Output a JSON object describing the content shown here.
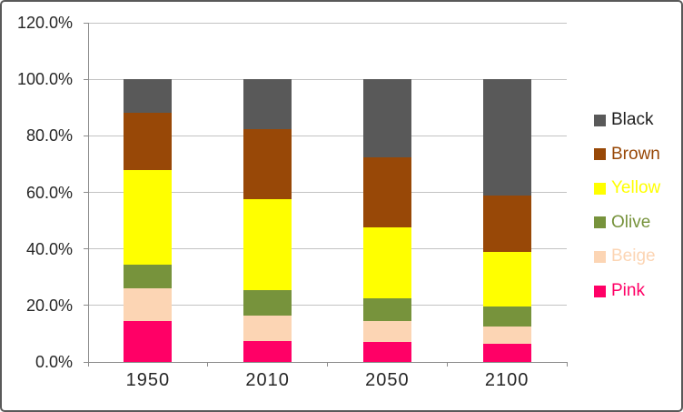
{
  "chart_data": {
    "type": "bar",
    "subtype": "stacked-100-percent-column",
    "title": "",
    "xlabel": "",
    "ylabel": "",
    "grid": true,
    "categories": [
      "1950",
      "2010",
      "2050",
      "2100"
    ],
    "series": [
      {
        "name": "Pink",
        "color": "#FF0066",
        "label_color": "#FF0066",
        "values": [
          14.5,
          7.5,
          7.0,
          6.5
        ]
      },
      {
        "name": "Beige",
        "color": "#FCD5B4",
        "label_color": "#FCD5B4",
        "values": [
          11.5,
          9.0,
          7.5,
          6.0
        ]
      },
      {
        "name": "Olive",
        "color": "#77933C",
        "label_color": "#77933C",
        "values": [
          8.5,
          9.0,
          8.0,
          7.0
        ]
      },
      {
        "name": "Yellow",
        "color": "#FFFF00",
        "label_color": "#FFFF00",
        "values": [
          33.5,
          32.0,
          25.0,
          19.5
        ]
      },
      {
        "name": "Brown",
        "color": "#984807",
        "label_color": "#984807",
        "values": [
          20.0,
          25.0,
          25.0,
          20.0
        ]
      },
      {
        "name": "Black",
        "color": "#595959",
        "label_color": "#1f1f1f",
        "values": [
          12.0,
          17.5,
          27.5,
          41.0
        ]
      }
    ],
    "y_axis": {
      "min": 0,
      "max": 120,
      "step": 20,
      "tick_labels": [
        "0.0%",
        "20.0%",
        "40.0%",
        "60.0%",
        "80.0%",
        "100.0%",
        "120.0%"
      ]
    },
    "x_axis": {
      "labels": [
        "1950",
        "2010",
        "2050",
        "2100"
      ]
    },
    "legend": {
      "position": "right",
      "order": [
        "Black",
        "Brown",
        "Yellow",
        "Olive",
        "Beige",
        "Pink"
      ]
    },
    "palette": {
      "gridline": "#c3c3c3",
      "axis": "#8c8c8c",
      "axis_text": "#262626",
      "frame_border": "#595959",
      "background": "#ffffff"
    }
  }
}
